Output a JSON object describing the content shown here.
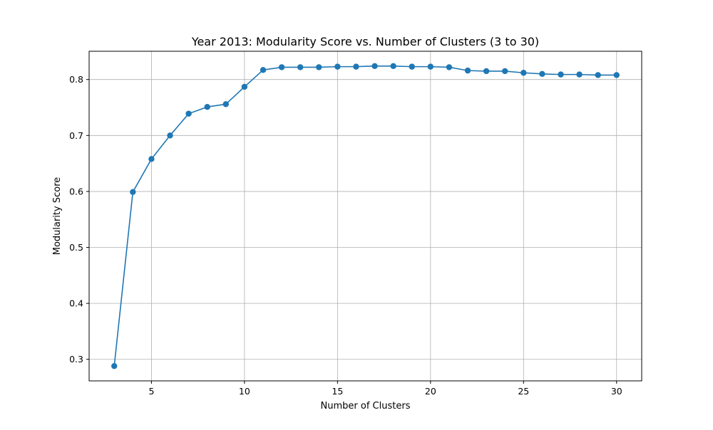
{
  "chart_data": {
    "type": "line",
    "title": "Year 2013: Modularity Score vs. Number of Clusters (3 to 30)",
    "xlabel": "Number of Clusters",
    "ylabel": "Modularity Score",
    "xlim": [
      1.65,
      31.35
    ],
    "ylim": [
      0.2615,
      0.8505
    ],
    "x_ticks": [
      5,
      10,
      15,
      20,
      25,
      30
    ],
    "y_ticks": [
      0.3,
      0.4,
      0.5,
      0.6,
      0.7,
      0.8
    ],
    "x_tick_labels": [
      "5",
      "10",
      "15",
      "20",
      "25",
      "30"
    ],
    "y_tick_labels": [
      "0.3",
      "0.4",
      "0.5",
      "0.6",
      "0.7",
      "0.8"
    ],
    "grid": true,
    "color": "#1f77b4",
    "series": [
      {
        "x": [
          3,
          4,
          5,
          6,
          7,
          8,
          9,
          10,
          11,
          12,
          13,
          14,
          15,
          16,
          17,
          18,
          19,
          20,
          21,
          22,
          23,
          24,
          25,
          26,
          27,
          28,
          29,
          30
        ],
        "values": [
          0.288,
          0.599,
          0.658,
          0.7,
          0.739,
          0.751,
          0.756,
          0.787,
          0.817,
          0.822,
          0.822,
          0.822,
          0.823,
          0.823,
          0.824,
          0.824,
          0.823,
          0.823,
          0.822,
          0.816,
          0.815,
          0.815,
          0.812,
          0.81,
          0.809,
          0.809,
          0.808,
          0.808
        ]
      }
    ]
  }
}
